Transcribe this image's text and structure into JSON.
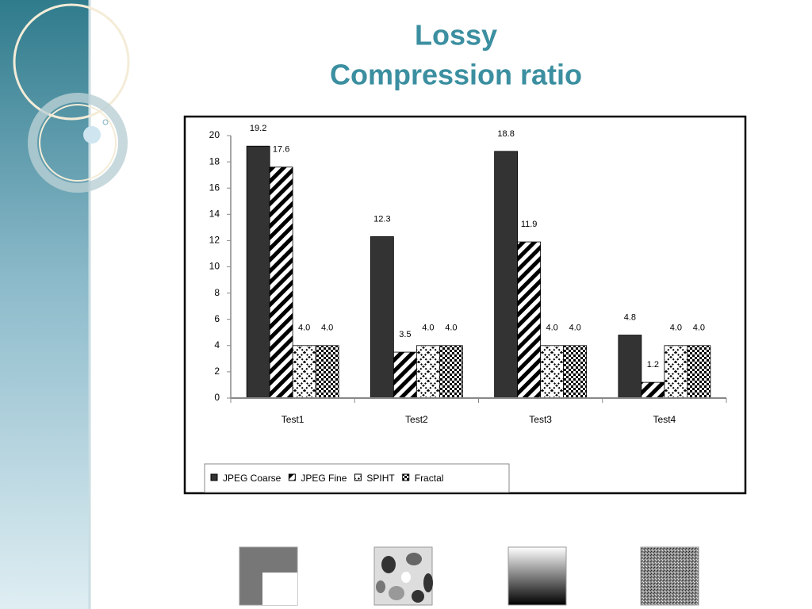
{
  "chart_data": {
    "type": "bar",
    "title": [
      "Lossy",
      "Compression ratio"
    ],
    "categories": [
      "Test1",
      "Test2",
      "Test3",
      "Test4"
    ],
    "series": [
      {
        "name": "JPEG Coarse",
        "color": "#333333",
        "values": [
          19.2,
          12.3,
          18.8,
          4.8
        ]
      },
      {
        "name": "JPEG Fine",
        "color": "#000000",
        "values": [
          17.6,
          3.5,
          11.9,
          1.2
        ]
      },
      {
        "name": "SPIHT",
        "color": "#000000",
        "values": [
          4.0,
          4.0,
          4.0,
          4.0
        ],
        "value_labels": [
          "4.0",
          "4.0",
          "4.0",
          "4.0"
        ]
      },
      {
        "name": "Fractal",
        "color": "#000000",
        "values": [
          4.0,
          4.0,
          4.0,
          4.0
        ],
        "value_labels": [
          "4.0",
          "4.0",
          "4.0",
          "4.0"
        ]
      }
    ],
    "ylim": [
      0,
      20
    ],
    "yticks": [
      0,
      2,
      4,
      6,
      8,
      10,
      12,
      14,
      16,
      18,
      20
    ],
    "grid": false,
    "legend": "bottom-left"
  }
}
